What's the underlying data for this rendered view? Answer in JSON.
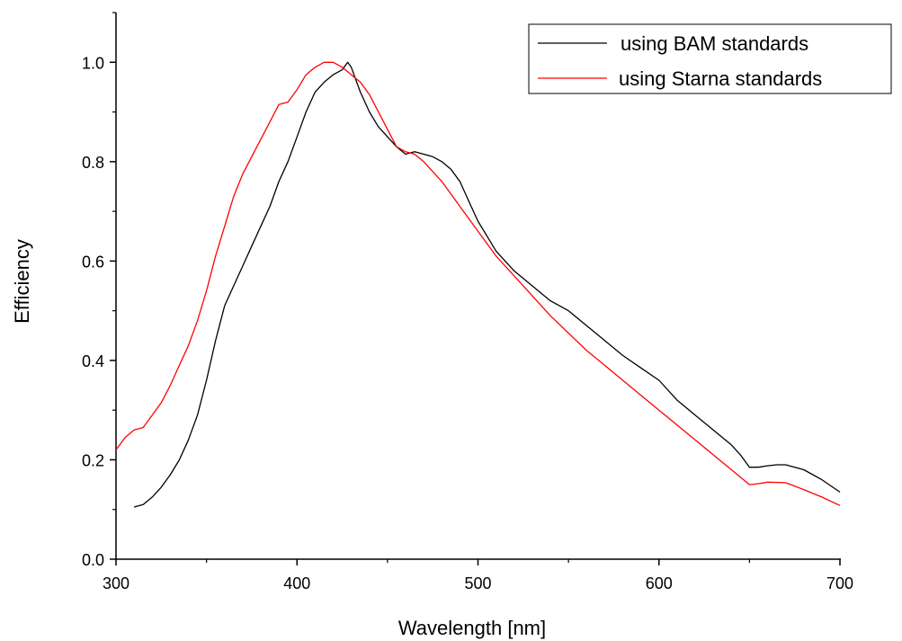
{
  "chart_data": {
    "type": "line",
    "title": "",
    "xlabel": "Wavelength [nm]",
    "ylabel": "Efficiency",
    "xlim": [
      300,
      700
    ],
    "ylim": [
      0.0,
      1.1
    ],
    "x_ticks": [
      300,
      400,
      500,
      600,
      700
    ],
    "x_tick_labels": [
      "300",
      "400",
      "500",
      "600",
      "700"
    ],
    "y_ticks": [
      0.0,
      0.2,
      0.4,
      0.6,
      0.8,
      1.0
    ],
    "y_tick_labels": [
      "0.0",
      "0.2",
      "0.4",
      "0.6",
      "0.8",
      "1.0"
    ],
    "grid": false,
    "legend_position": "top-right",
    "series": [
      {
        "name": "using BAM standards",
        "color": "#000000",
        "x": [
          310,
          315,
          320,
          325,
          330,
          335,
          340,
          345,
          350,
          355,
          360,
          365,
          370,
          375,
          380,
          385,
          390,
          395,
          400,
          405,
          410,
          415,
          420,
          425,
          428,
          430,
          435,
          440,
          445,
          450,
          455,
          460,
          465,
          470,
          475,
          480,
          485,
          490,
          495,
          500,
          505,
          510,
          520,
          530,
          540,
          550,
          560,
          570,
          580,
          590,
          600,
          610,
          620,
          630,
          640,
          645,
          650,
          655,
          660,
          665,
          670,
          680,
          690,
          700
        ],
        "y": [
          0.105,
          0.11,
          0.125,
          0.145,
          0.17,
          0.2,
          0.24,
          0.29,
          0.36,
          0.44,
          0.51,
          0.55,
          0.59,
          0.63,
          0.67,
          0.71,
          0.76,
          0.8,
          0.85,
          0.9,
          0.94,
          0.96,
          0.975,
          0.985,
          1.0,
          0.99,
          0.94,
          0.9,
          0.87,
          0.85,
          0.83,
          0.815,
          0.82,
          0.815,
          0.81,
          0.8,
          0.785,
          0.76,
          0.72,
          0.68,
          0.65,
          0.62,
          0.58,
          0.55,
          0.52,
          0.5,
          0.47,
          0.44,
          0.41,
          0.385,
          0.36,
          0.32,
          0.29,
          0.26,
          0.23,
          0.21,
          0.185,
          0.185,
          0.188,
          0.19,
          0.19,
          0.18,
          0.16,
          0.135
        ]
      },
      {
        "name": "using Starna standards",
        "color": "#ff0000",
        "x": [
          300,
          305,
          310,
          315,
          320,
          325,
          330,
          335,
          340,
          345,
          350,
          355,
          360,
          365,
          370,
          375,
          380,
          385,
          390,
          395,
          400,
          405,
          410,
          415,
          420,
          425,
          430,
          435,
          440,
          445,
          450,
          455,
          460,
          465,
          470,
          480,
          490,
          500,
          510,
          520,
          530,
          540,
          550,
          560,
          570,
          580,
          590,
          600,
          610,
          620,
          630,
          640,
          650,
          655,
          660,
          670,
          680,
          690,
          700
        ],
        "y": [
          0.22,
          0.245,
          0.26,
          0.265,
          0.29,
          0.315,
          0.35,
          0.39,
          0.43,
          0.48,
          0.54,
          0.61,
          0.67,
          0.73,
          0.775,
          0.81,
          0.845,
          0.88,
          0.915,
          0.92,
          0.945,
          0.975,
          0.99,
          1.0,
          1.0,
          0.99,
          0.975,
          0.96,
          0.935,
          0.9,
          0.865,
          0.83,
          0.82,
          0.815,
          0.8,
          0.76,
          0.71,
          0.66,
          0.61,
          0.57,
          0.53,
          0.49,
          0.455,
          0.42,
          0.39,
          0.36,
          0.33,
          0.3,
          0.27,
          0.24,
          0.21,
          0.18,
          0.15,
          0.152,
          0.155,
          0.154,
          0.14,
          0.125,
          0.108
        ]
      }
    ]
  }
}
